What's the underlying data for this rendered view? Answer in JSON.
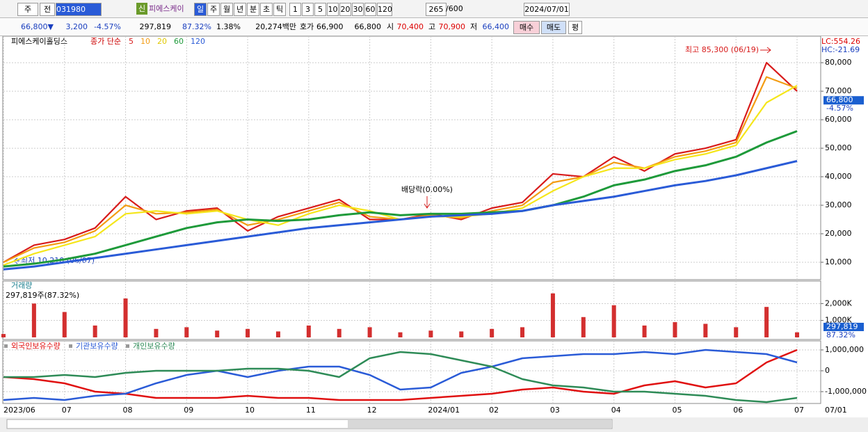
{
  "toolbar": {
    "market": "주",
    "prev": "전",
    "code": "031980",
    "badge": "신",
    "name": "피에스케이",
    "periods": [
      "일",
      "주",
      "월",
      "년",
      "분",
      "초",
      "틱"
    ],
    "intervals": [
      "1",
      "3",
      "5",
      "10",
      "20",
      "30",
      "60",
      "120"
    ],
    "count": "265",
    "count_max": "/600",
    "date": "2024/07/01"
  },
  "info": {
    "price": "66,800▼",
    "change": "3,200",
    "change_pct": "-4.57%",
    "volume": "297,819",
    "volume_pct": "87.32%",
    "turnover": "1.38%",
    "amount": "20,274백만",
    "quote_label": "호가",
    "ask": "66,900",
    "bid": "66,800",
    "open_label": "시",
    "open": "70,400",
    "high_label": "고",
    "high": "70,900",
    "low_label": "저",
    "low": "66,400",
    "buy": "매수",
    "sell": "매도",
    "avg": "평"
  },
  "chart_data": [
    {
      "type": "line",
      "title": "피에스케이홀딩스",
      "legend_title": "종가 단순",
      "lc": "LC:554.26",
      "hc": "HC:-21.69",
      "categories": [
        "2023/06",
        null,
        "07",
        null,
        "08",
        null,
        "09",
        null,
        "10",
        null,
        "11",
        null,
        "12",
        null,
        "2024/01",
        null,
        "02",
        null,
        "03",
        null,
        "04",
        null,
        "05",
        null,
        "06",
        null,
        "07"
      ],
      "series": [
        {
          "name": "5",
          "color": "#d81b1b",
          "values": [
            10000,
            16000,
            18000,
            22000,
            33000,
            25000,
            28000,
            29000,
            21000,
            26000,
            29000,
            32000,
            25000,
            25000,
            27000,
            25000,
            29000,
            31000,
            41000,
            40000,
            47000,
            42000,
            48000,
            50000,
            53000,
            80000,
            70000
          ]
        },
        {
          "name": "10",
          "color": "#f39c12",
          "values": [
            10000,
            15000,
            17000,
            21000,
            30000,
            27000,
            27500,
            28500,
            23000,
            25000,
            28000,
            31000,
            26000,
            25000,
            26500,
            25500,
            28000,
            30000,
            38000,
            40000,
            45000,
            43000,
            47000,
            49000,
            52000,
            75000,
            71000
          ]
        },
        {
          "name": "20",
          "color": "#f5e61a",
          "values": [
            9000,
            13000,
            16000,
            19000,
            27000,
            28000,
            27000,
            28000,
            25000,
            23000,
            27000,
            30000,
            28000,
            25000,
            26000,
            26000,
            27000,
            29000,
            35000,
            40000,
            43000,
            43000,
            46000,
            48000,
            51000,
            66000,
            72000
          ]
        },
        {
          "name": "60",
          "color": "#1e9a3a",
          "values": [
            8500,
            9500,
            11000,
            13000,
            16000,
            19000,
            22000,
            24000,
            25000,
            24500,
            25000,
            26500,
            27500,
            26500,
            27000,
            27000,
            27500,
            28000,
            30000,
            33000,
            37000,
            39000,
            42000,
            44000,
            47000,
            52000,
            56000
          ]
        },
        {
          "name": "120",
          "color": "#2a5bd7",
          "values": [
            7500,
            8500,
            10000,
            11500,
            13000,
            14500,
            16000,
            17500,
            19000,
            20500,
            22000,
            23000,
            24000,
            25000,
            26000,
            26500,
            27000,
            28000,
            30000,
            31500,
            33000,
            35000,
            37000,
            38500,
            40500,
            43000,
            45500
          ]
        }
      ],
      "ylim": [
        3900,
        89300
      ],
      "yticks": [
        {
          "value": 10000,
          "label": "10,000"
        },
        {
          "value": 20000,
          "label": "20,000"
        },
        {
          "value": 30000,
          "label": "30,000"
        },
        {
          "value": 40000,
          "label": "40,000"
        },
        {
          "value": 50000,
          "label": "50,000"
        },
        {
          "value": 60000,
          "label": "60,000"
        },
        {
          "value": 70000,
          "label": "70,000"
        },
        {
          "value": 80000,
          "label": "80,000"
        }
      ],
      "grid": true,
      "last": {
        "value": 66800,
        "label": "66,800",
        "change": "-4.57%"
      },
      "annotations": {
        "high": "최고 85,300 (06/19)",
        "low": "최저 10,210 (06/07)",
        "dividend": "배당락(0.00%)"
      },
      "x_end_label": "07/01"
    },
    {
      "type": "bar",
      "title": "거래량",
      "subtitle": "297,819주(87.32%)",
      "color": "#d32f2f",
      "values": [
        200000,
        2000000,
        1500000,
        700000,
        2300000,
        500000,
        600000,
        400000,
        500000,
        350000,
        700000,
        500000,
        600000,
        300000,
        400000,
        350000,
        500000,
        600000,
        2600000,
        1200000,
        1900000,
        700000,
        900000,
        800000,
        600000,
        1800000,
        297819
      ],
      "ylim": [
        -125000,
        3330000
      ],
      "yticks": [
        {
          "value": 1000000,
          "label": "1,000K"
        },
        {
          "value": 2000000,
          "label": "2,000K"
        }
      ],
      "grid": true,
      "last": {
        "label": "297,819",
        "pct": "87.32%"
      }
    },
    {
      "type": "line",
      "series": [
        {
          "name": "외국인보유수량",
          "color": "#e01010",
          "values": [
            -300000,
            -400000,
            -600000,
            -1000000,
            -1100000,
            -1300000,
            -1300000,
            -1300000,
            -1200000,
            -1300000,
            -1300000,
            -1400000,
            -1400000,
            -1400000,
            -1300000,
            -1200000,
            -1100000,
            -900000,
            -800000,
            -1000000,
            -1100000,
            -700000,
            -500000,
            -800000,
            -600000,
            400000,
            1000000
          ]
        },
        {
          "name": "기관보유수량",
          "color": "#2a5bd7",
          "values": [
            -1400000,
            -1300000,
            -1400000,
            -1200000,
            -1100000,
            -600000,
            -200000,
            0,
            -300000,
            0,
            200000,
            200000,
            -200000,
            -900000,
            -800000,
            -100000,
            200000,
            600000,
            700000,
            800000,
            800000,
            900000,
            800000,
            1000000,
            900000,
            800000,
            400000
          ]
        },
        {
          "name": "개인보유수량",
          "color": "#2e8b57",
          "values": [
            -300000,
            -300000,
            -200000,
            -300000,
            -100000,
            0,
            0,
            0,
            100000,
            100000,
            0,
            -300000,
            600000,
            900000,
            800000,
            500000,
            200000,
            -400000,
            -700000,
            -800000,
            -1000000,
            -1000000,
            -1100000,
            -1200000,
            -1400000,
            -1500000,
            -1300000
          ]
        }
      ],
      "ylim": [
        -1567000,
        1433000
      ],
      "yticks": [
        {
          "value": 1000000,
          "label": "1,000,000"
        },
        0,
        {
          "value": -1000000,
          "label": "-1,000,000"
        }
      ],
      "grid": true
    }
  ]
}
